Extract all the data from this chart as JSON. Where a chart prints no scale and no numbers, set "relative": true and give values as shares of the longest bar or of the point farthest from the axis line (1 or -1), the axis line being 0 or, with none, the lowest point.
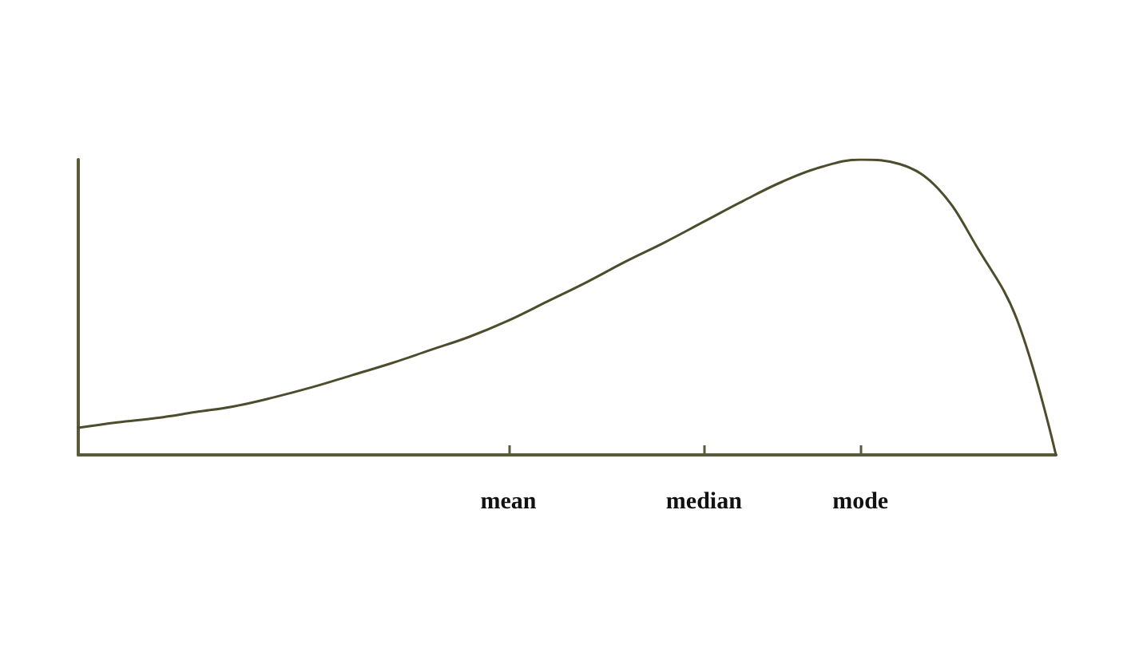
{
  "chart_data": {
    "type": "line",
    "relative": true,
    "categories": [
      null,
      null,
      null,
      null,
      null,
      null,
      null,
      null,
      null,
      null,
      null,
      "mean",
      null,
      null,
      null,
      null,
      "median",
      null,
      null,
      null,
      "mode",
      null,
      null,
      null,
      null,
      null
    ],
    "series": [
      {
        "color": "#4d4d2e",
        "values": [
          0.092,
          0.11,
          0.125,
          0.145,
          0.165,
          0.195,
          0.23,
          0.27,
          0.31,
          0.355,
          0.4,
          0.455,
          0.52,
          0.585,
          0.655,
          0.72,
          0.79,
          0.86,
          0.925,
          0.975,
          1.0,
          0.985,
          0.9,
          0.7,
          0.46,
          0
        ]
      }
    ],
    "grid": false,
    "marker": "none",
    "line_style": "solid"
  }
}
